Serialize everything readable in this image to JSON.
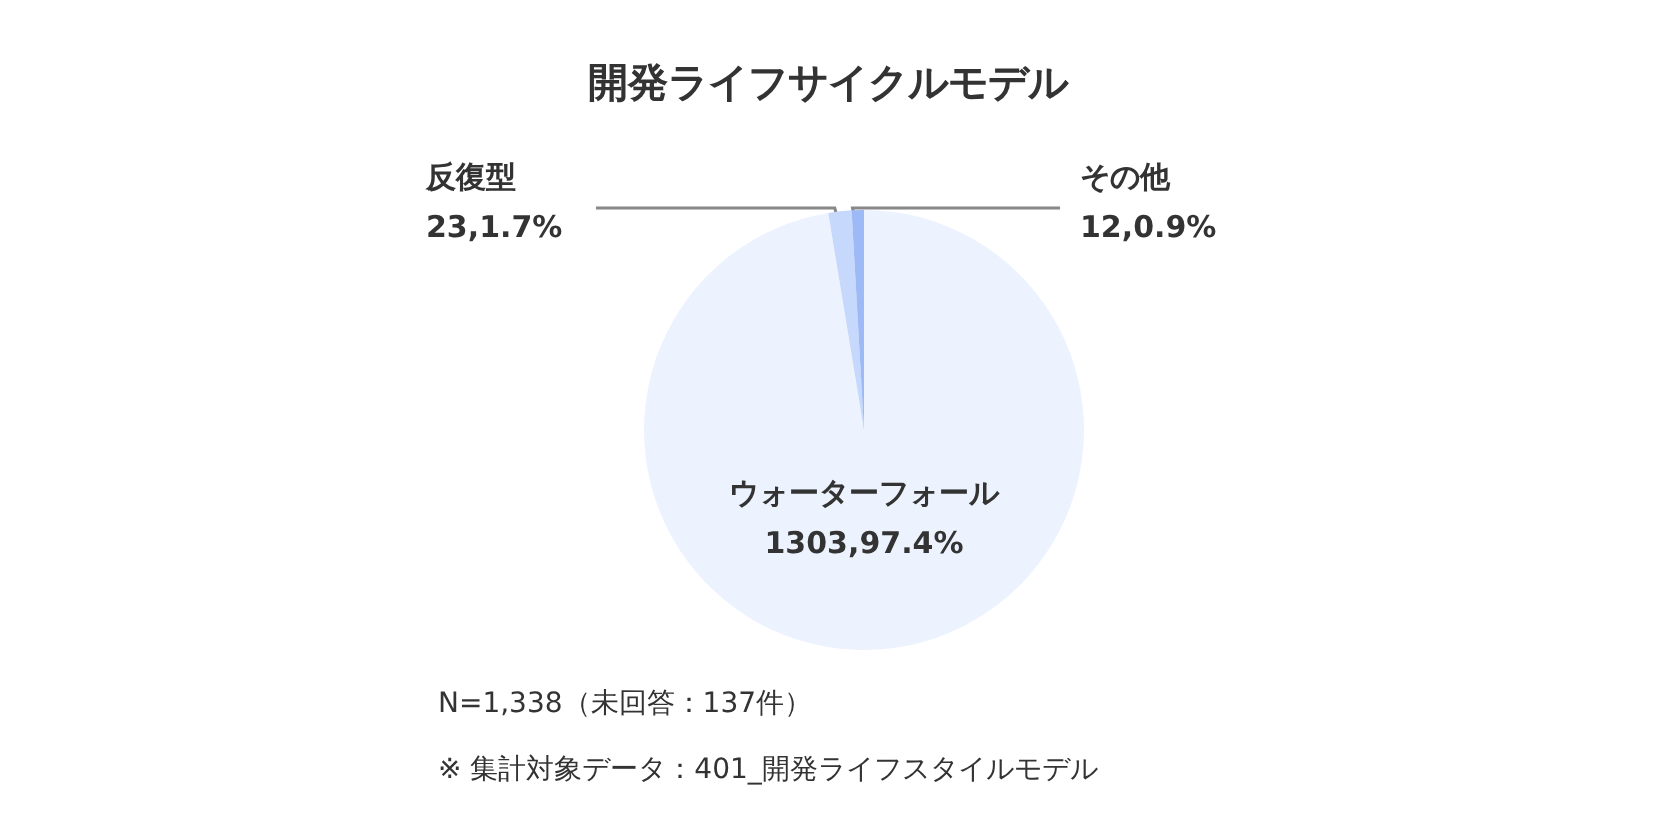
{
  "chart_data": {
    "type": "pie",
    "title": "開発ライフサイクルモデル",
    "categories": [
      "ウォーターフォール",
      "反復型",
      "その他"
    ],
    "values": [
      97.4,
      1.7,
      0.9
    ],
    "value_labels": [
      "1303,97.4%",
      "23,1.7%",
      "12,0.9%"
    ],
    "colors": [
      "#edf3fe",
      "#c6d8fb",
      "#9dbaf7"
    ],
    "annotations": [
      "N=1,338（未回答：137件）",
      "※ 集計対象データ：401_開発ライフスタイルモデル"
    ]
  }
}
